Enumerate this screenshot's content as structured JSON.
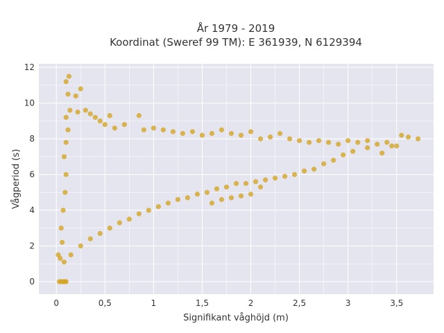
{
  "chart_data": {
    "type": "scatter",
    "title_lines": [
      "År 1979 - 2019",
      "Koordinat (Sweref 99 TM): E 361939, N 6129394"
    ],
    "xlabel": "Signifikant våghöjd (m)",
    "ylabel": "Vågperiod (s)",
    "xlim": [
      -0.18,
      3.88
    ],
    "ylim": [
      -0.7,
      12.2
    ],
    "x_ticks": [
      0,
      0.5,
      1,
      1.5,
      2,
      2.5,
      3,
      3.5
    ],
    "x_tick_labels": [
      "0",
      "0,5",
      "1",
      "1,5",
      "2",
      "2,5",
      "3",
      "3,5"
    ],
    "y_ticks": [
      0,
      2,
      4,
      6,
      8,
      10,
      12
    ],
    "y_tick_labels": [
      "0",
      "2",
      "4",
      "6",
      "8",
      "10",
      "12"
    ],
    "grid": true,
    "colors": {
      "marker": "#D4A421",
      "plot_bg": "#E5E5F0",
      "grid": "#FFFFFF"
    },
    "series": [
      {
        "marker_color": "#D4A421",
        "points": [
          [
            0.03,
            0
          ],
          [
            0.05,
            0
          ],
          [
            0.07,
            0
          ],
          [
            0.09,
            0
          ],
          [
            0.1,
            0
          ],
          [
            0.02,
            1.5
          ],
          [
            0.04,
            1.3
          ],
          [
            0.06,
            2.2
          ],
          [
            0.08,
            1.1
          ],
          [
            0.05,
            3.0
          ],
          [
            0.07,
            4.0
          ],
          [
            0.09,
            5.0
          ],
          [
            0.1,
            6.0
          ],
          [
            0.08,
            7.0
          ],
          [
            0.1,
            7.8
          ],
          [
            0.12,
            8.5
          ],
          [
            0.1,
            9.2
          ],
          [
            0.14,
            9.6
          ],
          [
            0.12,
            10.5
          ],
          [
            0.1,
            11.2
          ],
          [
            0.13,
            11.5
          ],
          [
            0.2,
            10.4
          ],
          [
            0.25,
            10.8
          ],
          [
            0.22,
            9.5
          ],
          [
            0.3,
            9.6
          ],
          [
            0.35,
            9.4
          ],
          [
            0.4,
            9.2
          ],
          [
            0.45,
            9.0
          ],
          [
            0.5,
            8.8
          ],
          [
            0.55,
            9.3
          ],
          [
            0.6,
            8.6
          ],
          [
            0.7,
            8.8
          ],
          [
            0.85,
            9.3
          ],
          [
            0.9,
            8.5
          ],
          [
            1.0,
            8.6
          ],
          [
            1.1,
            8.5
          ],
          [
            1.2,
            8.4
          ],
          [
            1.3,
            8.3
          ],
          [
            1.4,
            8.4
          ],
          [
            1.5,
            8.2
          ],
          [
            1.6,
            8.3
          ],
          [
            1.7,
            8.5
          ],
          [
            1.8,
            8.3
          ],
          [
            1.9,
            8.2
          ],
          [
            2.0,
            8.4
          ],
          [
            2.1,
            8.0
          ],
          [
            2.2,
            8.1
          ],
          [
            2.3,
            8.3
          ],
          [
            2.4,
            8.0
          ],
          [
            2.5,
            7.9
          ],
          [
            2.6,
            7.8
          ],
          [
            2.7,
            7.9
          ],
          [
            2.8,
            7.8
          ],
          [
            2.9,
            7.7
          ],
          [
            3.0,
            7.9
          ],
          [
            3.1,
            7.8
          ],
          [
            3.2,
            7.9
          ],
          [
            3.3,
            7.7
          ],
          [
            3.4,
            7.8
          ],
          [
            3.5,
            7.6
          ],
          [
            3.55,
            8.2
          ],
          [
            3.62,
            8.1
          ],
          [
            3.72,
            8.0
          ],
          [
            3.45,
            7.6
          ],
          [
            3.35,
            7.2
          ],
          [
            3.2,
            7.5
          ],
          [
            3.05,
            7.3
          ],
          [
            2.95,
            7.1
          ],
          [
            2.85,
            6.8
          ],
          [
            2.75,
            6.6
          ],
          [
            2.65,
            6.3
          ],
          [
            2.55,
            6.2
          ],
          [
            2.45,
            6.0
          ],
          [
            2.35,
            5.9
          ],
          [
            2.25,
            5.8
          ],
          [
            2.15,
            5.7
          ],
          [
            2.05,
            5.6
          ],
          [
            1.95,
            5.5
          ],
          [
            1.85,
            5.5
          ],
          [
            1.75,
            5.3
          ],
          [
            1.65,
            5.2
          ],
          [
            1.55,
            5.0
          ],
          [
            1.45,
            4.9
          ],
          [
            1.35,
            4.7
          ],
          [
            1.25,
            4.6
          ],
          [
            1.15,
            4.4
          ],
          [
            1.05,
            4.2
          ],
          [
            0.95,
            4.0
          ],
          [
            0.85,
            3.8
          ],
          [
            0.75,
            3.5
          ],
          [
            0.65,
            3.3
          ],
          [
            0.55,
            3.0
          ],
          [
            0.45,
            2.7
          ],
          [
            0.35,
            2.4
          ],
          [
            0.25,
            2.0
          ],
          [
            0.15,
            1.5
          ],
          [
            1.7,
            4.6
          ],
          [
            1.9,
            4.8
          ],
          [
            1.8,
            4.7
          ],
          [
            2.0,
            4.9
          ],
          [
            2.1,
            5.3
          ],
          [
            1.6,
            4.4
          ]
        ]
      }
    ]
  }
}
